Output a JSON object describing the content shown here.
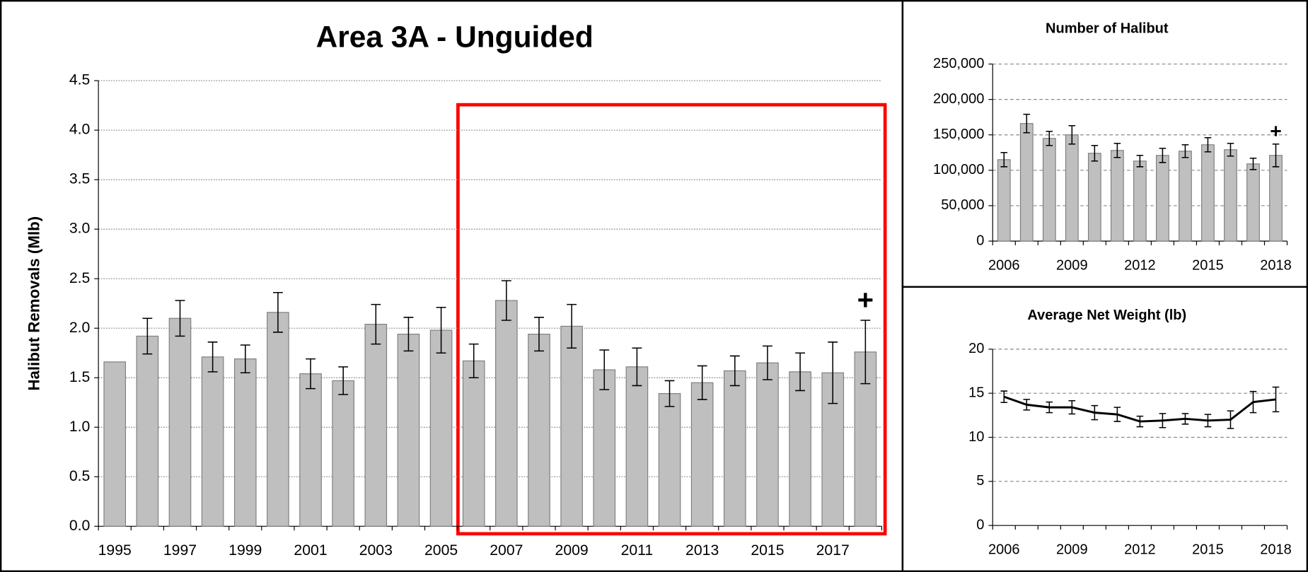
{
  "chart_data": [
    {
      "type": "bar",
      "title": "Area 3A - Unguided",
      "y_label": "Halibut Removals (Mlb)",
      "categories": [
        "1995",
        null,
        "1997",
        null,
        "1999",
        null,
        "2001",
        null,
        "2003",
        null,
        "2005",
        null,
        "2007",
        null,
        "2009",
        null,
        "2011",
        null,
        "2013",
        null,
        "2015",
        null,
        "2017",
        null
      ],
      "values": [
        1.66,
        1.92,
        2.1,
        1.71,
        1.69,
        2.16,
        1.54,
        1.47,
        2.04,
        1.94,
        1.98,
        1.67,
        2.28,
        1.94,
        2.02,
        1.58,
        1.61,
        1.34,
        1.45,
        1.57,
        1.65,
        1.56,
        1.55,
        1.76
      ],
      "errors": [
        null,
        0.18,
        0.18,
        0.15,
        0.14,
        0.2,
        0.15,
        0.14,
        0.2,
        0.17,
        0.23,
        0.17,
        0.2,
        0.17,
        0.22,
        0.2,
        0.19,
        0.13,
        0.17,
        0.15,
        0.17,
        0.19,
        0.31,
        0.32
      ],
      "color": "#bfbfbf",
      "annotation": "+",
      "ylim": [
        0,
        4.5
      ],
      "yticks": [
        {
          "value": 0,
          "label": "0.0"
        },
        0.5,
        {
          "value": 1,
          "label": "1.0"
        },
        1.5,
        {
          "value": 2,
          "label": "2.0"
        },
        2.5,
        {
          "value": 3,
          "label": "3.0"
        },
        3.5,
        {
          "value": 4,
          "label": "4.0"
        },
        4.5
      ],
      "grid": true
    },
    {
      "type": "bar",
      "title": "Number of Halibut",
      "categories": [
        "2006",
        null,
        null,
        "2009",
        null,
        null,
        "2012",
        null,
        null,
        "2015",
        null,
        null,
        "2018"
      ],
      "values": [
        115000,
        166000,
        145000,
        150000,
        124000,
        128000,
        113000,
        121000,
        127000,
        136000,
        129000,
        109000,
        121000
      ],
      "errors": [
        10000,
        13000,
        10000,
        13000,
        11000,
        10000,
        8000,
        10000,
        9000,
        10000,
        9000,
        8000,
        16000
      ],
      "color": "#bfbfbf",
      "annotation": "+",
      "ylim": [
        0,
        250000
      ],
      "yticks": [
        0,
        {
          "value": 50000,
          "label": "50,000"
        },
        {
          "value": 100000,
          "label": "100,000"
        },
        {
          "value": 150000,
          "label": "150,000"
        },
        {
          "value": 200000,
          "label": "200,000"
        },
        {
          "value": 250000,
          "label": "250,000"
        }
      ],
      "grid": true
    },
    {
      "type": "line",
      "title": "Average Net Weight (lb)",
      "categories": [
        "2006",
        null,
        null,
        "2009",
        null,
        null,
        "2012",
        null,
        null,
        "2015",
        null,
        null,
        "2018"
      ],
      "values": [
        14.6,
        13.7,
        13.4,
        13.4,
        12.8,
        12.6,
        11.8,
        11.9,
        12.1,
        11.9,
        12.0,
        14.0,
        14.3
      ],
      "errors": [
        0.65,
        0.6,
        0.6,
        0.75,
        0.8,
        0.8,
        0.6,
        0.8,
        0.6,
        0.7,
        1.0,
        1.2,
        1.4
      ],
      "color": "#000000",
      "ylim": [
        0,
        20
      ],
      "yticks": [
        0,
        5,
        10,
        15,
        20
      ],
      "grid": true
    }
  ]
}
